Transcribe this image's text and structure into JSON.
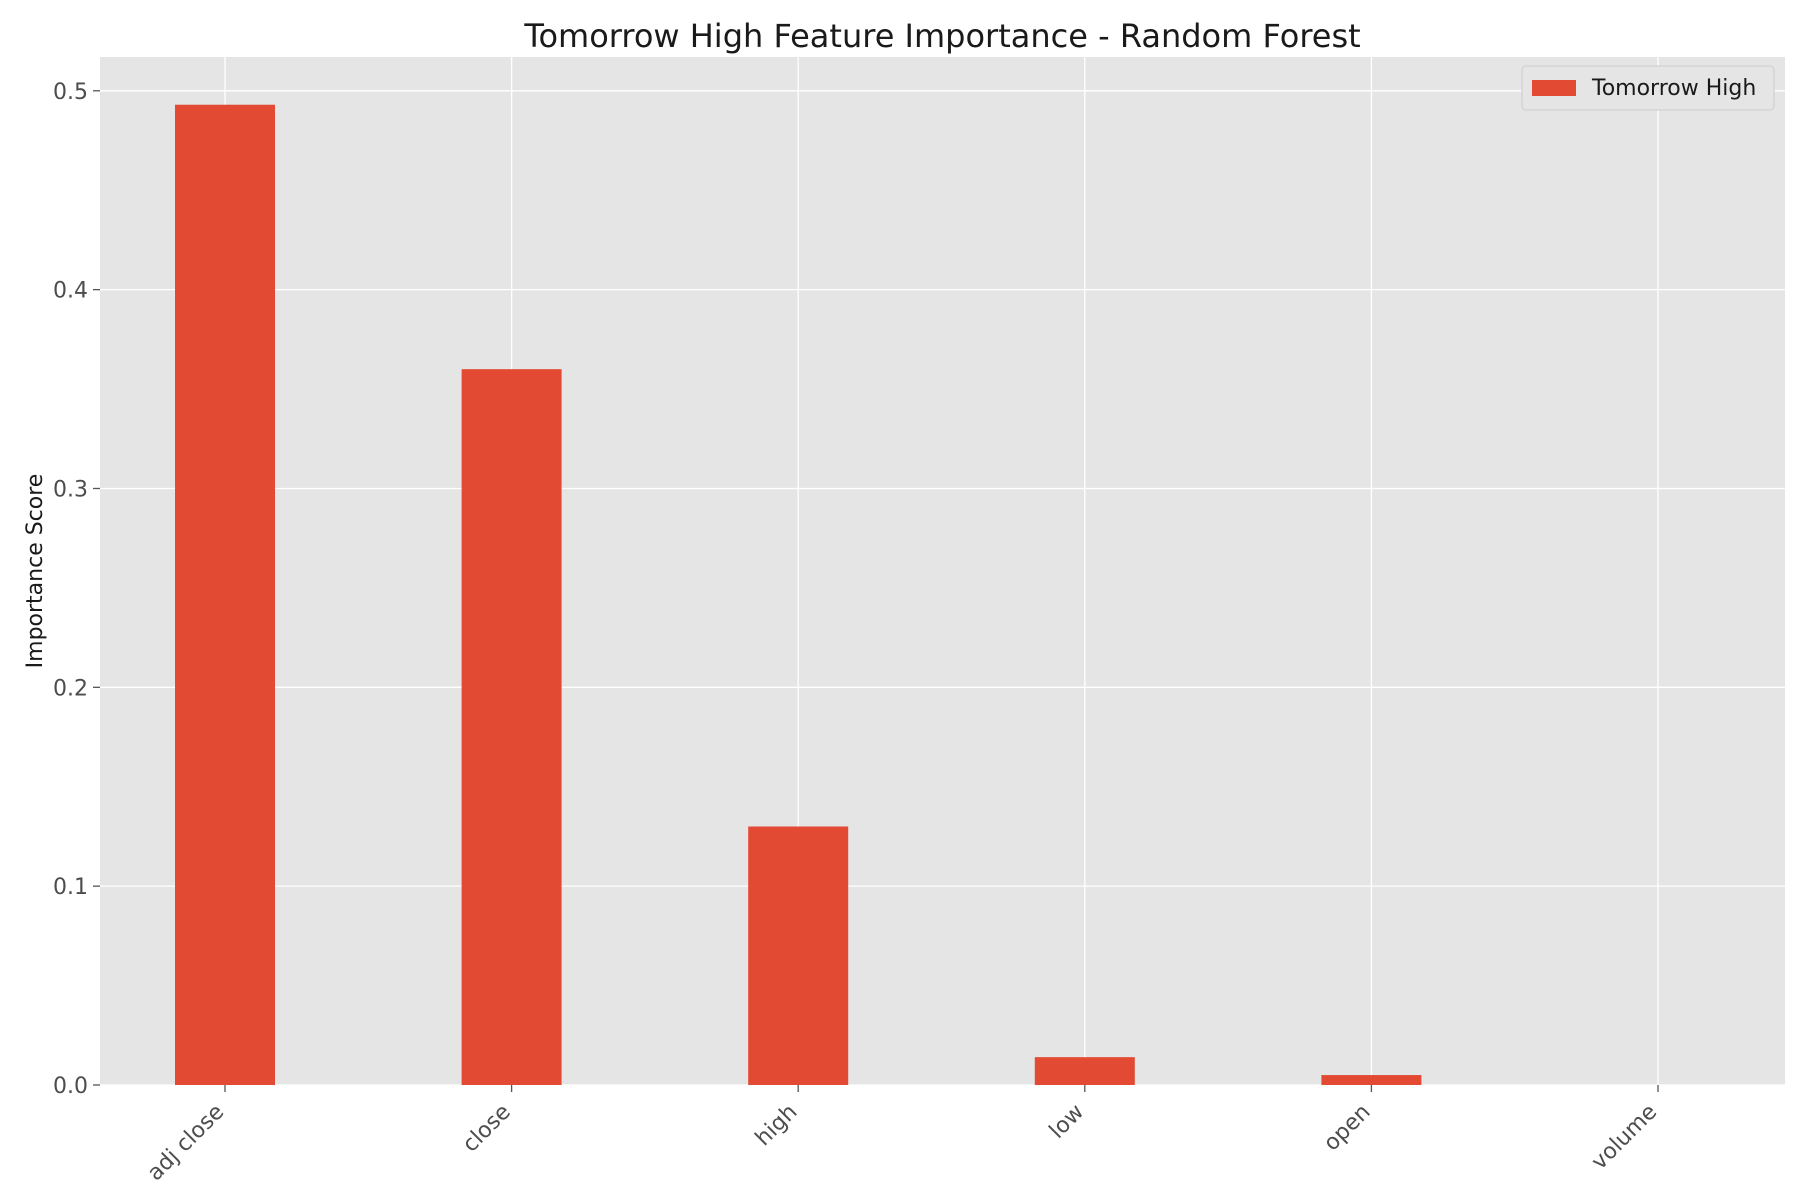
{
  "chart_data": {
    "type": "bar",
    "title": "Tomorrow High Feature Importance - Random Forest",
    "xlabel": "",
    "ylabel": "Importance Score",
    "categories": [
      "adj close",
      "close",
      "high",
      "low",
      "open",
      "volume"
    ],
    "series": [
      {
        "name": "Tomorrow High",
        "values": [
          0.493,
          0.36,
          0.13,
          0.014,
          0.005,
          0.0
        ]
      }
    ],
    "ylim": [
      0,
      0.517
    ],
    "yticks": [
      0.0,
      0.1,
      0.2,
      0.3,
      0.4,
      0.5
    ],
    "ytick_labels": [
      "0.0",
      "0.1",
      "0.2",
      "0.3",
      "0.4",
      "0.5"
    ],
    "grid": true,
    "legend_position": "top-right",
    "colors": {
      "bar": "#e24a33",
      "plot_background": "#e5e5e5",
      "grid": "#ffffff"
    }
  }
}
